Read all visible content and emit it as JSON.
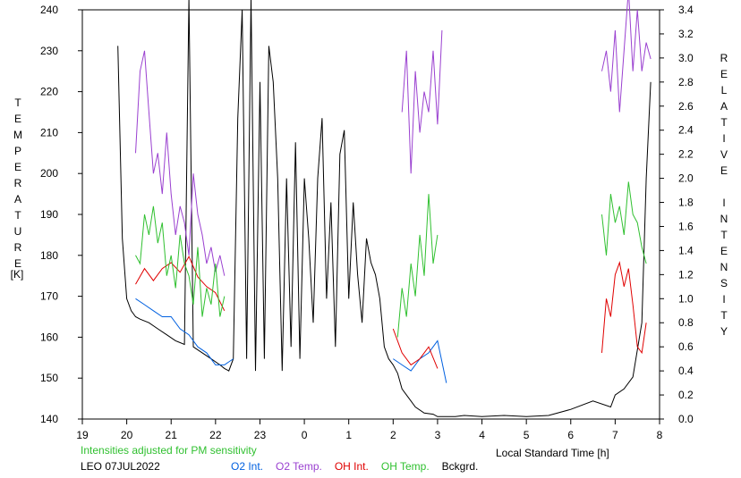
{
  "chart_data": {
    "type": "line",
    "station": "LEO",
    "date": "07JUL2022",
    "note": "Intensities adjusted for PM sensitivity",
    "xlabel": "Local Standard Time [h]",
    "ylabel_left": "TEMPERATURE",
    "ylabel_left_unit": "[K]",
    "ylabel_right": "RELATIVE INTENSITY",
    "x_tick_labels": [
      "19",
      "20",
      "21",
      "22",
      "23",
      "0",
      "1",
      "2",
      "3",
      "4",
      "5",
      "6",
      "7",
      "8"
    ],
    "x_range_hours": [
      19,
      32
    ],
    "y_left_range": [
      140,
      240
    ],
    "y_left_ticks": [
      "140",
      "150",
      "160",
      "170",
      "180",
      "190",
      "200",
      "210",
      "220",
      "230",
      "240"
    ],
    "y_right_range": [
      0.0,
      3.4
    ],
    "y_right_ticks": [
      "0.0",
      "0.2",
      "0.4",
      "0.6",
      "0.8",
      "1.0",
      "1.2",
      "1.4",
      "1.6",
      "1.8",
      "2.0",
      "2.2",
      "2.4",
      "2.6",
      "2.8",
      "3.0",
      "3.2",
      "3.4"
    ],
    "legend": [
      {
        "name": "O2 Int.",
        "color": "#0060e0"
      },
      {
        "name": "O2 Temp.",
        "color": "#9a40d0"
      },
      {
        "name": "OH Int.",
        "color": "#e00000"
      },
      {
        "name": "OH Temp.",
        "color": "#30c030"
      },
      {
        "name": "Bckgrd.",
        "color": "#000000"
      }
    ],
    "series": [
      {
        "name": "Bckgrd.",
        "axis": "right",
        "color": "#000000",
        "x": [
          19.8,
          19.9,
          20.0,
          20.1,
          20.2,
          20.3,
          20.5,
          20.7,
          20.9,
          21.1,
          21.3,
          21.4,
          21.5,
          21.7,
          21.9,
          22.1,
          22.2,
          22.3,
          22.4,
          22.5,
          22.6,
          22.7,
          22.8,
          22.9,
          23.0,
          23.1,
          23.2,
          23.3,
          23.4,
          23.5,
          23.6,
          23.7,
          23.8,
          23.9,
          24.0,
          24.1,
          24.2,
          24.3,
          24.4,
          24.5,
          24.6,
          24.7,
          24.8,
          24.9,
          25.0,
          25.1,
          25.2,
          25.3,
          25.4,
          25.5,
          25.6,
          25.7,
          25.8,
          25.9,
          26.0,
          26.1,
          26.2,
          26.3,
          26.4,
          26.5,
          26.7,
          26.9,
          27.0,
          27.2,
          27.4,
          27.6,
          28.0,
          28.5,
          29.0,
          29.5,
          30.0,
          30.5,
          30.9,
          31.0,
          31.2,
          31.4,
          31.6,
          31.7,
          31.8
        ],
        "y": [
          3.1,
          1.5,
          1.0,
          0.9,
          0.85,
          0.83,
          0.8,
          0.75,
          0.7,
          0.65,
          0.62,
          3.5,
          0.6,
          0.55,
          0.5,
          0.45,
          0.42,
          0.4,
          0.5,
          2.5,
          3.4,
          0.5,
          3.5,
          0.4,
          2.8,
          0.5,
          3.1,
          2.8,
          2.0,
          0.4,
          2.0,
          0.6,
          2.3,
          0.5,
          2.0,
          1.5,
          0.8,
          2.0,
          2.5,
          1.0,
          1.8,
          0.6,
          2.2,
          2.4,
          1.0,
          1.8,
          1.2,
          0.8,
          1.5,
          1.3,
          1.2,
          1.0,
          0.6,
          0.5,
          0.45,
          0.38,
          0.25,
          0.2,
          0.15,
          0.1,
          0.05,
          0.04,
          0.02,
          0.02,
          0.02,
          0.03,
          0.02,
          0.03,
          0.02,
          0.03,
          0.08,
          0.15,
          0.1,
          0.2,
          0.25,
          0.35,
          0.8,
          2.0,
          2.8
        ]
      },
      {
        "name": "O2 Int.",
        "axis": "right",
        "color": "#0060e0",
        "x": [
          20.2,
          20.4,
          20.6,
          20.8,
          21.0,
          21.2,
          21.4,
          21.6,
          21.8,
          22.0,
          22.2,
          22.4,
          26.0,
          26.2,
          26.4,
          26.6,
          26.8,
          27.0,
          27.2
        ],
        "y": [
          1.0,
          0.95,
          0.9,
          0.85,
          0.85,
          0.75,
          0.7,
          0.6,
          0.55,
          0.45,
          0.45,
          0.5,
          0.5,
          0.45,
          0.4,
          0.5,
          0.55,
          0.65,
          0.3
        ]
      },
      {
        "name": "O2 Temp.",
        "axis": "left",
        "color": "#9a40d0",
        "x": [
          20.2,
          20.3,
          20.4,
          20.5,
          20.6,
          20.7,
          20.8,
          20.9,
          21.0,
          21.1,
          21.2,
          21.3,
          21.4,
          21.5,
          21.6,
          21.7,
          21.8,
          21.9,
          22.0,
          22.1,
          22.2,
          26.2,
          26.3,
          26.4,
          26.5,
          26.6,
          26.7,
          26.8,
          26.9,
          27.0,
          27.1,
          30.7,
          30.8,
          30.9,
          31.0,
          31.1,
          31.2,
          31.3,
          31.4,
          31.5,
          31.6,
          31.7,
          31.8
        ],
        "y": [
          205,
          225,
          230,
          215,
          200,
          205,
          195,
          210,
          195,
          185,
          192,
          188,
          180,
          200,
          190,
          185,
          178,
          182,
          176,
          180,
          175,
          215,
          230,
          200,
          225,
          210,
          220,
          215,
          230,
          212,
          235,
          225,
          230,
          220,
          235,
          215,
          230,
          245,
          225,
          240,
          225,
          232,
          228
        ]
      },
      {
        "name": "OH Int.",
        "axis": "right",
        "color": "#e00000",
        "x": [
          20.2,
          20.4,
          20.6,
          20.8,
          21.0,
          21.2,
          21.4,
          21.6,
          21.8,
          22.0,
          22.2,
          26.0,
          26.2,
          26.4,
          26.6,
          26.8,
          27.0,
          30.7,
          30.8,
          30.9,
          31.0,
          31.1,
          31.2,
          31.3,
          31.4,
          31.5,
          31.6,
          31.7
        ],
        "y": [
          1.12,
          1.25,
          1.15,
          1.25,
          1.3,
          1.22,
          1.35,
          1.18,
          1.1,
          1.05,
          0.9,
          0.75,
          0.55,
          0.45,
          0.5,
          0.6,
          0.42,
          0.55,
          1.0,
          0.85,
          1.2,
          1.3,
          1.1,
          1.25,
          0.95,
          0.6,
          0.55,
          0.8
        ]
      },
      {
        "name": "OH Temp.",
        "axis": "left",
        "color": "#30c030",
        "x": [
          20.2,
          20.3,
          20.4,
          20.5,
          20.6,
          20.7,
          20.8,
          20.9,
          21.0,
          21.1,
          21.2,
          21.3,
          21.4,
          21.5,
          21.6,
          21.7,
          21.8,
          21.9,
          22.0,
          22.1,
          22.2,
          26.1,
          26.2,
          26.3,
          26.4,
          26.5,
          26.6,
          26.7,
          26.8,
          26.9,
          27.0,
          30.7,
          30.8,
          30.9,
          31.0,
          31.1,
          31.2,
          31.3,
          31.4,
          31.5,
          31.6,
          31.7
        ],
        "y": [
          180,
          178,
          190,
          185,
          192,
          183,
          188,
          175,
          180,
          172,
          185,
          178,
          175,
          168,
          182,
          165,
          172,
          168,
          178,
          165,
          170,
          160,
          172,
          165,
          178,
          170,
          185,
          175,
          195,
          178,
          185,
          190,
          180,
          195,
          188,
          192,
          185,
          198,
          190,
          188,
          182,
          178
        ]
      }
    ]
  }
}
